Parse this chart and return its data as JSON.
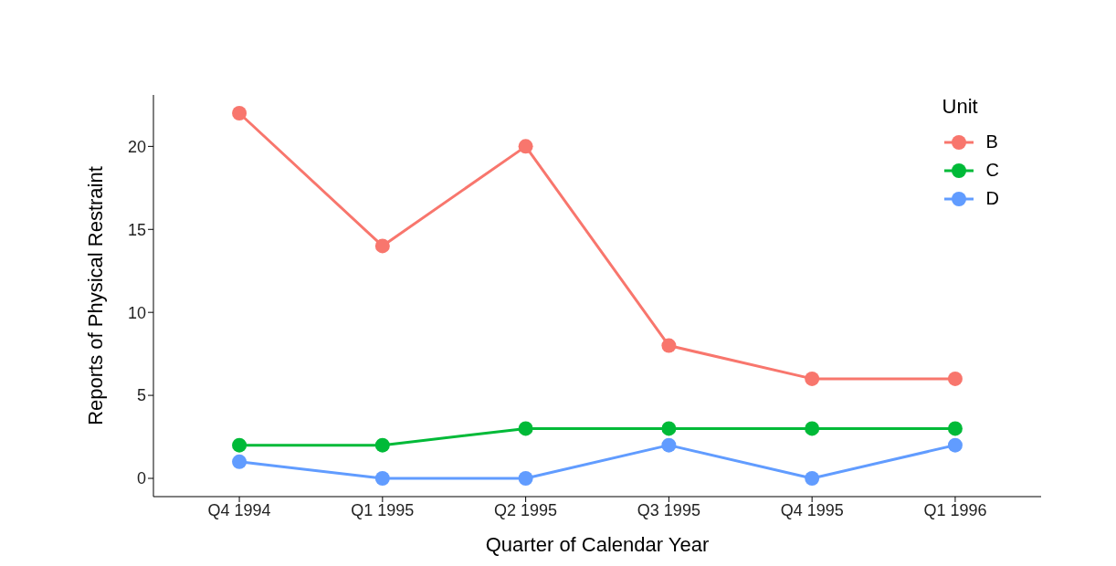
{
  "chart_data": {
    "type": "line",
    "xlabel": "Quarter of Calendar Year",
    "ylabel": "Reports of Physical Restraint",
    "legend_title": "Unit",
    "categories": [
      "Q4 1994",
      "Q1 1995",
      "Q2 1995",
      "Q3 1995",
      "Q4 1995",
      "Q1 1996"
    ],
    "series": [
      {
        "name": "B",
        "color": "#f8766d",
        "values": [
          22,
          14,
          20,
          8,
          6,
          6
        ]
      },
      {
        "name": "C",
        "color": "#00ba38",
        "values": [
          2,
          2,
          3,
          3,
          3,
          3
        ]
      },
      {
        "name": "D",
        "color": "#619cff",
        "values": [
          1,
          0,
          0,
          2,
          0,
          2
        ]
      }
    ],
    "ylim": [
      -1.1,
      23.1
    ],
    "yticks": [
      0,
      5,
      10,
      15,
      20
    ],
    "grid": false,
    "legend": "top right",
    "marker": "circle",
    "line_style": "solid"
  }
}
